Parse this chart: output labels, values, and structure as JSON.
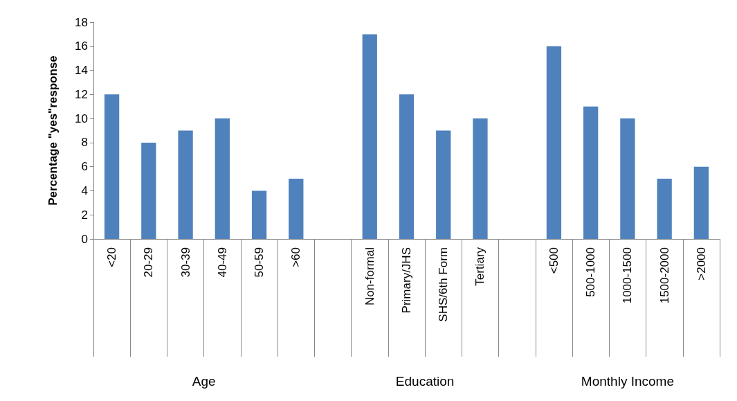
{
  "chart_data": {
    "type": "bar",
    "ylabel": "Percentage \"yes\"response",
    "categories": [
      "<20",
      "20-29",
      "30-39",
      "40-49",
      "50-59",
      ">60",
      null,
      "Non-formal",
      "Primary/JHS",
      "SHS/6th Form",
      "Tertiary",
      null,
      "<500",
      "500-1000",
      "1000-1500",
      "1500-2000",
      ">2000"
    ],
    "values": [
      12,
      8,
      9,
      10,
      4,
      5,
      null,
      17,
      12,
      9,
      10,
      null,
      16,
      11,
      10,
      5,
      6
    ],
    "color": "#4f81bd",
    "ylim": [
      0,
      18
    ],
    "yticks": [
      0,
      2,
      4,
      6,
      8,
      10,
      12,
      14,
      16,
      18
    ],
    "grid": false,
    "annotations": [
      "Age",
      "Education",
      "Monthly Income"
    ]
  }
}
